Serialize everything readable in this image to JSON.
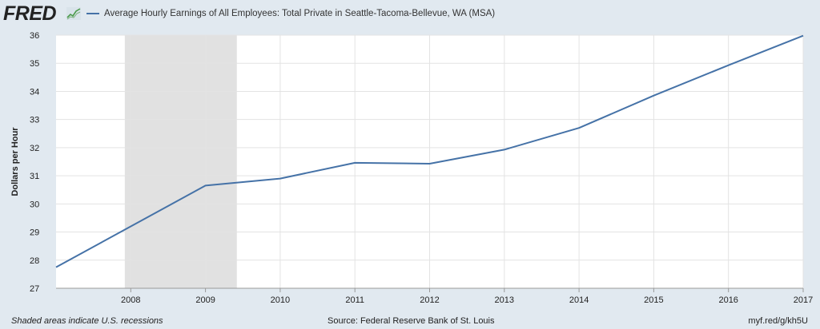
{
  "header": {
    "logo_text": "FRED",
    "logo_icon": "trend-line-icon"
  },
  "legend": {
    "label": "Average Hourly Earnings of All Employees: Total Private in Seattle-Tacoma-Bellevue, WA (MSA)",
    "color": "#4572a7"
  },
  "chart_data": {
    "type": "line",
    "title": "Average Hourly Earnings of All Employees: Total Private in Seattle-Tacoma-Bellevue, WA (MSA)",
    "xlabel": "",
    "ylabel": "Dollars per Hour",
    "xlim": [
      2007.0,
      2017.0
    ],
    "ylim": [
      27,
      36
    ],
    "x_ticks": [
      2008,
      2009,
      2010,
      2011,
      2012,
      2013,
      2014,
      2015,
      2016,
      2017
    ],
    "y_ticks": [
      27,
      28,
      29,
      30,
      31,
      32,
      33,
      34,
      35,
      36
    ],
    "grid": true,
    "legend_position": "top-left",
    "line_color": "#4572a7",
    "recession_color": "#e1e1e1",
    "recession_shading": [
      {
        "start": 2007.92,
        "end": 2009.42
      }
    ],
    "series": [
      {
        "name": "Average Hourly Earnings of All Employees: Total Private in Seattle-Tacoma-Bellevue, WA (MSA)",
        "x": [
          2007,
          2008,
          2009,
          2010,
          2011,
          2012,
          2013,
          2014,
          2015,
          2016,
          2017
        ],
        "y": [
          27.75,
          29.2,
          30.65,
          30.9,
          31.46,
          31.43,
          31.93,
          32.7,
          33.85,
          34.93,
          35.98
        ]
      }
    ]
  },
  "footer": {
    "note": "Shaded areas indicate U.S. recessions",
    "source": "Source: Federal Reserve Bank of St. Louis",
    "url": "myf.red/g/kh5U"
  }
}
